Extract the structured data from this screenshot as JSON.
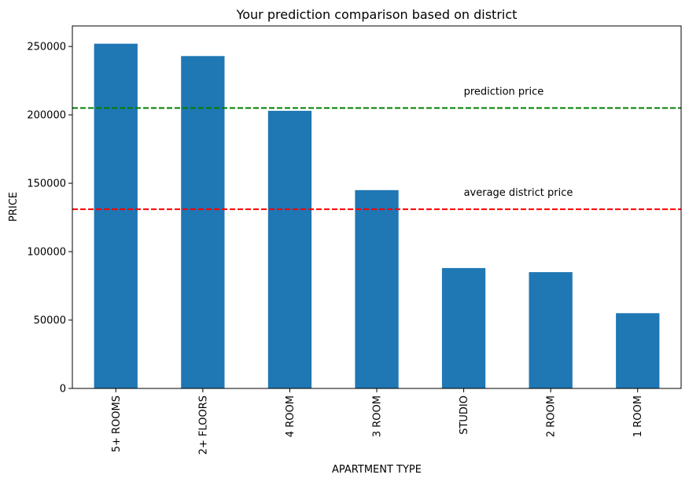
{
  "chart_data": {
    "type": "bar",
    "title": "Your prediction comparison based on district",
    "xlabel": "APARTMENT TYPE",
    "ylabel": "PRICE",
    "categories": [
      "5+ ROOMS",
      "2+ FLOORS",
      "4 ROOM",
      "3 ROOM",
      "STUDIO",
      "2 ROOM",
      "1 ROOM"
    ],
    "values": [
      252000,
      243000,
      203000,
      145000,
      88000,
      85000,
      55000
    ],
    "ylim": [
      0,
      265000
    ],
    "yticks": [
      0,
      50000,
      100000,
      150000,
      200000,
      250000
    ],
    "ytick_labels": [
      "0",
      "50000",
      "100000",
      "150000",
      "200000",
      "250000"
    ],
    "bar_color": "#1f77b4",
    "grid": false,
    "reference_lines": [
      {
        "label": "prediction price",
        "value": 205000,
        "color": "#008000",
        "style": "dashed"
      },
      {
        "label": "average district price",
        "value": 131000,
        "color": "#ff0000",
        "style": "dashed"
      }
    ]
  }
}
